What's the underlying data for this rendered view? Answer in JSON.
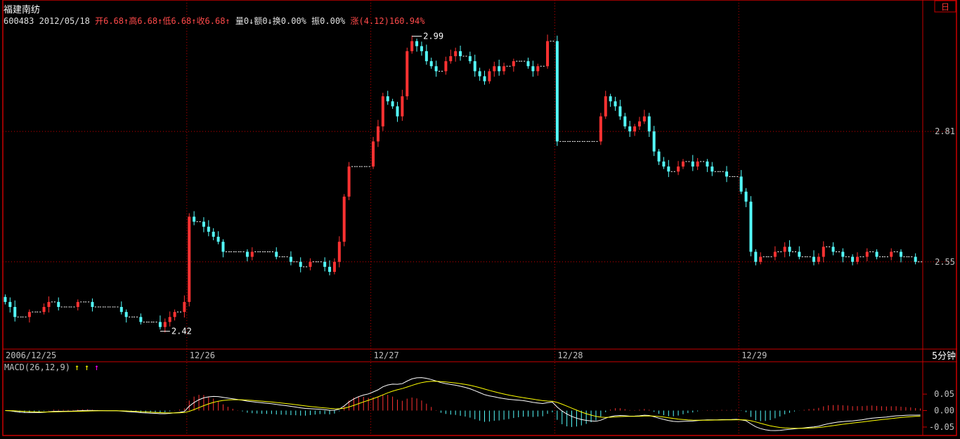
{
  "header": {
    "stock_name": "福建南纺",
    "code": "600483",
    "date": "2012/05/18",
    "open_label": "开",
    "open_value": "6.68↑",
    "high_label": "高",
    "high_value": "6.68↑",
    "low_label": "低",
    "low_value": "6.68↑",
    "close_label": "收",
    "close_value": "6.68↑",
    "volume": "量0↓",
    "amount": "额0↓",
    "turnover": "换0.00%",
    "amplitude": "振0.00%",
    "change": "涨(4.12)160.94%"
  },
  "period_button": "日",
  "period_label": "5分钟",
  "colors": {
    "up": "#ff3232",
    "down": "#54fcfc",
    "frame": "#c80000",
    "grid": "#c80000",
    "dif": "#ffffff",
    "dea": "#ffff00",
    "text": "#e0e0e0",
    "axis_text": "#c0c0c0"
  },
  "chart_data": [
    {
      "type": "candlestick",
      "title": "",
      "x_labels": [
        "2006/12/25",
        "12/26",
        "12/27",
        "12/28",
        "12/29"
      ],
      "y_tick_labels": [
        "2.81",
        "2.55"
      ],
      "ylim": [
        2.39,
        3.03
      ],
      "annotations": [
        {
          "text": "2.99",
          "target": "high"
        },
        {
          "text": "2.42",
          "target": "low"
        }
      ],
      "grid": true,
      "series": [
        {
          "date": "2006/12/25",
          "closes": [
            2.47,
            2.46,
            2.44,
            2.44,
            2.44,
            2.45,
            2.45,
            2.45,
            2.46,
            2.47,
            2.47,
            2.46,
            2.46,
            2.46,
            2.46,
            2.47,
            2.47,
            2.47,
            2.46,
            2.46,
            2.46,
            2.46,
            2.46,
            2.46,
            2.45,
            2.44,
            2.44,
            2.44,
            2.43,
            2.43,
            2.43,
            2.43,
            2.42,
            2.43,
            2.44,
            2.45,
            2.45,
            2.47
          ]
        },
        {
          "date": "12/26",
          "closes": [
            2.64,
            2.63,
            2.63,
            2.62,
            2.61,
            2.6,
            2.59,
            2.57,
            2.57,
            2.57,
            2.57,
            2.57,
            2.56,
            2.57,
            2.57,
            2.57,
            2.57,
            2.57,
            2.56,
            2.56,
            2.56,
            2.55,
            2.55,
            2.54,
            2.54,
            2.55,
            2.55,
            2.55,
            2.54,
            2.53,
            2.55,
            2.59,
            2.68,
            2.74,
            2.74,
            2.74,
            2.74,
            2.74
          ]
        },
        {
          "date": "12/27",
          "closes": [
            2.79,
            2.82,
            2.88,
            2.87,
            2.86,
            2.84,
            2.88,
            2.97,
            2.99,
            2.98,
            2.97,
            2.95,
            2.94,
            2.93,
            2.93,
            2.95,
            2.96,
            2.97,
            2.96,
            2.96,
            2.95,
            2.93,
            2.92,
            2.91,
            2.93,
            2.94,
            2.93,
            2.94,
            2.94,
            2.95,
            2.95,
            2.95,
            2.94,
            2.93,
            2.94,
            2.94,
            2.99,
            2.99
          ]
        },
        {
          "date": "12/28",
          "closes": [
            2.79,
            2.79,
            2.79,
            2.79,
            2.79,
            2.79,
            2.79,
            2.79,
            2.79,
            2.84,
            2.88,
            2.87,
            2.86,
            2.84,
            2.82,
            2.81,
            2.82,
            2.83,
            2.84,
            2.81,
            2.77,
            2.75,
            2.74,
            2.73,
            2.73,
            2.74,
            2.75,
            2.75,
            2.74,
            2.75,
            2.75,
            2.74,
            2.73,
            2.73,
            2.73,
            2.72,
            2.72,
            2.72
          ]
        },
        {
          "date": "12/29",
          "closes": [
            2.69,
            2.67,
            2.57,
            2.55,
            2.56,
            2.56,
            2.56,
            2.57,
            2.57,
            2.58,
            2.57,
            2.57,
            2.56,
            2.56,
            2.56,
            2.55,
            2.56,
            2.58,
            2.58,
            2.57,
            2.57,
            2.56,
            2.56,
            2.55,
            2.56,
            2.56,
            2.57,
            2.57,
            2.56,
            2.56,
            2.56,
            2.57,
            2.57,
            2.56,
            2.56,
            2.56,
            2.55,
            2.55
          ]
        }
      ]
    },
    {
      "type": "line",
      "title": "MACD(26,12,9)",
      "indicator_markers": [
        "↑",
        "↑",
        "↑"
      ],
      "marker_colors": [
        "#ffff00",
        "#ffff00",
        "#ff00ff"
      ],
      "y_tick_labels": [
        "0.05",
        "0.00",
        "-0.05"
      ],
      "ylim": [
        -0.065,
        0.095
      ],
      "series": [
        {
          "name": "DIF"
        },
        {
          "name": "DEA"
        },
        {
          "name": "MACD"
        }
      ]
    }
  ]
}
